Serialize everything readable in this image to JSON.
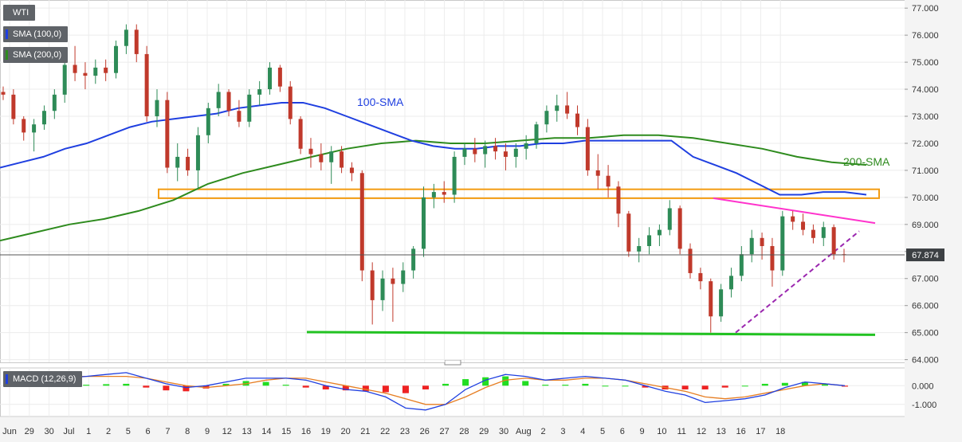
{
  "legend": {
    "symbol": "WTI",
    "sma100": "SMA (100,0)",
    "sma200": "SMA (200,0)",
    "macd": "MACD (12,26,9)",
    "sma100_color": "#1f3fe0",
    "sma200_color": "#2e8b1e"
  },
  "last_price": "67.874",
  "annotations": {
    "sma100": "100-SMA",
    "sma200": "200-SMA"
  },
  "colors": {
    "up": "#2e8b57",
    "down": "#c0392b",
    "sma100": "#1f3fe0",
    "sma200": "#2e8b1e",
    "support": "#22c222",
    "resistance_zone": "#f39c12",
    "resistance_line": "#ff33cc",
    "trendline": "#9b27af",
    "macd_line": "#1f3fe0",
    "signal_line": "#e67e22",
    "hist_pos": "#22dd22",
    "hist_neg": "#ee2222"
  },
  "chart_data": {
    "type": "candlestick",
    "y_axis": {
      "ticks": [
        "77.000",
        "76.000",
        "75.000",
        "74.000",
        "73.000",
        "72.000",
        "71.000",
        "70.000",
        "69.000",
        "68.000",
        "67.000",
        "66.000",
        "65.000",
        "64.000"
      ],
      "range": [
        63.9,
        77.3
      ]
    },
    "x_axis": {
      "ticks": [
        "Jun",
        "29",
        "30",
        "Jul",
        "1",
        "2",
        "5",
        "6",
        "7",
        "8",
        "9",
        "12",
        "13",
        "14",
        "15",
        "16",
        "19",
        "20",
        "21",
        "22",
        "23",
        "26",
        "27",
        "28",
        "29",
        "30",
        "Aug",
        "2",
        "3",
        "4",
        "5",
        "6",
        "9",
        "10",
        "11",
        "12",
        "13",
        "16",
        "17",
        "18"
      ]
    },
    "candles": [
      [
        73.9,
        74.1,
        73.6,
        73.8
      ],
      [
        73.8,
        74.0,
        72.7,
        72.9
      ],
      [
        72.9,
        73.0,
        72.1,
        72.4
      ],
      [
        72.4,
        72.9,
        71.7,
        72.7
      ],
      [
        72.7,
        73.4,
        72.5,
        73.2
      ],
      [
        73.2,
        74.0,
        72.9,
        73.8
      ],
      [
        73.8,
        75.2,
        73.5,
        74.9
      ],
      [
        74.9,
        75.6,
        74.3,
        74.6
      ],
      [
        74.6,
        75.0,
        74.0,
        74.5
      ],
      [
        74.5,
        75.1,
        74.2,
        74.8
      ],
      [
        74.8,
        75.1,
        74.3,
        74.6
      ],
      [
        74.6,
        75.8,
        74.4,
        75.6
      ],
      [
        75.6,
        76.4,
        75.3,
        76.2
      ],
      [
        76.2,
        76.4,
        75.0,
        75.3
      ],
      [
        75.3,
        75.6,
        72.8,
        73.0
      ],
      [
        73.0,
        74.0,
        72.6,
        73.6
      ],
      [
        73.6,
        73.9,
        70.9,
        71.1
      ],
      [
        71.1,
        72.0,
        70.6,
        71.5
      ],
      [
        71.5,
        71.8,
        70.8,
        71.0
      ],
      [
        71.0,
        72.6,
        70.3,
        72.3
      ],
      [
        72.3,
        73.5,
        72.0,
        73.3
      ],
      [
        73.3,
        74.2,
        73.0,
        73.9
      ],
      [
        73.9,
        74.0,
        73.0,
        73.2
      ],
      [
        73.2,
        73.6,
        72.6,
        72.8
      ],
      [
        72.8,
        74.0,
        72.6,
        73.8
      ],
      [
        73.8,
        74.3,
        73.4,
        74.0
      ],
      [
        74.0,
        75.0,
        73.8,
        74.8
      ],
      [
        74.8,
        74.9,
        73.9,
        74.1
      ],
      [
        74.1,
        74.3,
        72.7,
        72.9
      ],
      [
        72.9,
        73.0,
        71.6,
        71.8
      ],
      [
        71.8,
        72.2,
        71.1,
        71.6
      ],
      [
        71.6,
        72.0,
        71.0,
        71.3
      ],
      [
        71.3,
        71.9,
        70.5,
        71.7
      ],
      [
        71.7,
        71.9,
        70.9,
        71.1
      ],
      [
        71.1,
        71.3,
        70.6,
        70.9
      ],
      [
        70.9,
        71.0,
        66.9,
        67.3
      ],
      [
        67.3,
        67.6,
        65.3,
        66.2
      ],
      [
        66.2,
        67.3,
        65.8,
        67.0
      ],
      [
        67.0,
        67.4,
        65.4,
        66.8
      ],
      [
        66.8,
        67.6,
        66.5,
        67.3
      ],
      [
        67.3,
        68.2,
        67.0,
        68.1
      ],
      [
        68.1,
        70.4,
        67.8,
        70.0
      ],
      [
        70.0,
        70.5,
        69.6,
        70.2
      ],
      [
        70.2,
        70.6,
        69.8,
        70.1
      ],
      [
        70.1,
        71.7,
        69.8,
        71.5
      ],
      [
        71.5,
        72.0,
        71.2,
        71.8
      ],
      [
        71.8,
        72.2,
        71.3,
        71.6
      ],
      [
        71.6,
        72.1,
        71.1,
        71.9
      ],
      [
        71.9,
        72.2,
        71.4,
        71.7
      ],
      [
        71.7,
        72.0,
        71.0,
        71.5
      ],
      [
        71.5,
        72.0,
        71.1,
        71.8
      ],
      [
        71.8,
        72.3,
        71.4,
        72.0
      ],
      [
        72.0,
        72.8,
        71.8,
        72.7
      ],
      [
        72.7,
        73.4,
        72.4,
        73.2
      ],
      [
        73.2,
        73.8,
        72.8,
        73.4
      ],
      [
        73.4,
        73.9,
        72.9,
        73.1
      ],
      [
        73.1,
        73.4,
        72.3,
        72.6
      ],
      [
        72.6,
        72.9,
        70.8,
        71.0
      ],
      [
        71.0,
        71.6,
        70.3,
        70.8
      ],
      [
        70.8,
        71.2,
        70.0,
        70.4
      ],
      [
        70.4,
        70.6,
        68.9,
        69.4
      ],
      [
        69.4,
        69.5,
        67.8,
        68.0
      ],
      [
        68.0,
        68.5,
        67.6,
        68.2
      ],
      [
        68.2,
        68.9,
        67.9,
        68.6
      ],
      [
        68.6,
        69.0,
        68.2,
        68.8
      ],
      [
        68.8,
        69.9,
        68.6,
        69.6
      ],
      [
        69.6,
        69.7,
        67.9,
        68.1
      ],
      [
        68.1,
        68.3,
        67.0,
        67.2
      ],
      [
        67.2,
        67.4,
        66.6,
        66.9
      ],
      [
        66.9,
        67.0,
        65.0,
        65.6
      ],
      [
        65.6,
        66.8,
        65.4,
        66.6
      ],
      [
        66.6,
        67.4,
        66.3,
        67.1
      ],
      [
        67.1,
        68.2,
        66.9,
        67.9
      ],
      [
        67.9,
        68.8,
        67.6,
        68.5
      ],
      [
        68.5,
        68.7,
        67.7,
        68.2
      ],
      [
        68.2,
        68.5,
        66.7,
        67.3
      ],
      [
        67.3,
        69.5,
        67.1,
        69.3
      ],
      [
        69.3,
        69.5,
        68.8,
        69.1
      ],
      [
        69.1,
        69.4,
        68.6,
        68.8
      ],
      [
        68.8,
        69.0,
        68.3,
        68.5
      ],
      [
        68.5,
        69.1,
        68.2,
        68.9
      ],
      [
        68.9,
        69.0,
        67.7,
        67.9
      ],
      [
        67.9,
        68.1,
        67.6,
        67.874
      ]
    ],
    "sma100": [
      71.1,
      71.3,
      71.5,
      71.8,
      72.0,
      72.3,
      72.6,
      72.8,
      72.9,
      73.0,
      73.1,
      73.3,
      73.4,
      73.5,
      73.5,
      73.3,
      73.0,
      72.7,
      72.4,
      72.1,
      71.9,
      71.8,
      71.8,
      71.9,
      71.9,
      72.0,
      72.0,
      72.1,
      72.1,
      72.1,
      72.1,
      72.1,
      71.5,
      71.2,
      70.9,
      70.5,
      70.1,
      70.1,
      70.2,
      70.2,
      70.1
    ],
    "sma200": [
      68.4,
      68.7,
      69.0,
      69.2,
      69.5,
      69.9,
      70.5,
      70.9,
      71.2,
      71.5,
      71.8,
      72.0,
      72.1,
      72.0,
      72.0,
      72.1,
      72.2,
      72.2,
      72.3,
      72.3,
      72.2,
      72.0,
      71.8,
      71.5,
      71.3,
      71.2
    ],
    "macd": [
      0.5,
      0.5,
      0.4,
      0.4,
      0.5,
      0.6,
      0.7,
      0.4,
      0.1,
      -0.1,
      0.0,
      0.2,
      0.4,
      0.4,
      0.4,
      0.3,
      0.0,
      -0.2,
      -0.3,
      -0.6,
      -1.2,
      -1.3,
      -1.0,
      -0.2,
      0.3,
      0.6,
      0.5,
      0.3,
      0.4,
      0.5,
      0.4,
      0.3,
      0.0,
      -0.3,
      -0.5,
      -0.9,
      -0.8,
      -0.7,
      -0.5,
      -0.1,
      0.2,
      0.1,
      0.0
    ],
    "signal": [
      0.3,
      0.4,
      0.4,
      0.5,
      0.5,
      0.5,
      0.5,
      0.4,
      0.2,
      0.0,
      -0.1,
      0.0,
      0.1,
      0.3,
      0.4,
      0.4,
      0.2,
      0.0,
      -0.2,
      -0.4,
      -0.7,
      -1.0,
      -1.0,
      -0.6,
      -0.1,
      0.3,
      0.4,
      0.3,
      0.3,
      0.4,
      0.4,
      0.3,
      0.1,
      -0.1,
      -0.3,
      -0.6,
      -0.7,
      -0.6,
      -0.4,
      -0.2,
      0.0,
      0.1,
      0.0
    ],
    "macd_hist": [
      0.05,
      0.05,
      0.04,
      0.0,
      0.05,
      0.08,
      0.1,
      -0.1,
      -0.25,
      -0.3,
      -0.15,
      0.1,
      0.25,
      0.2,
      0.05,
      -0.1,
      -0.2,
      -0.25,
      -0.3,
      -0.35,
      -0.4,
      -0.2,
      0.1,
      0.35,
      0.45,
      0.5,
      0.25,
      0.05,
      0.05,
      0.1,
      0.0,
      0.0,
      -0.1,
      -0.2,
      -0.2,
      -0.2,
      -0.1,
      0.0,
      0.1,
      0.15,
      0.2,
      0.1,
      -0.05
    ],
    "macd_axis": {
      "ticks": [
        "0.000",
        "-1.000"
      ],
      "range": [
        -1.65,
        0.95
      ]
    }
  }
}
